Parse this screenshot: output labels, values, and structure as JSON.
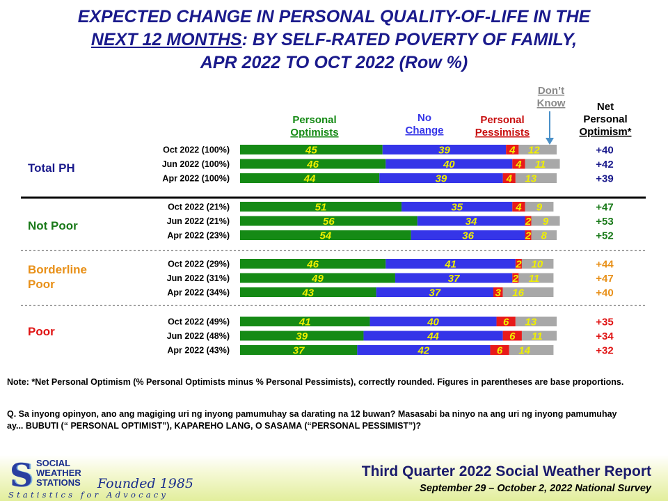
{
  "title": {
    "line1": "EXPECTED CHANGE IN PERSONAL QUALITY-OF-LIFE IN THE",
    "line2_underlined": "NEXT 12 MONTHS",
    "line2_rest": ": BY SELF-RATED POVERTY OF FAMILY,",
    "line3": "APR 2022 TO OCT 2022 (Row %)"
  },
  "chart_data": {
    "type": "bar",
    "stacked": true,
    "orientation": "horizontal",
    "legend": {
      "optimists": [
        "Personal",
        "Optimists"
      ],
      "no_change": [
        "No",
        "Change"
      ],
      "pessimists": [
        "Personal",
        "Pessimists"
      ],
      "dont_know": [
        "Don’t",
        "Know"
      ],
      "net": [
        "Net",
        "Personal",
        "Optimism*"
      ]
    },
    "colors": {
      "optimists": "#158a15",
      "no_change": "#3535e8",
      "pessimists": "#e81a1a",
      "dont_know": "#a8a8a8",
      "value_text": "#f0f000",
      "net_ph": "#1a1a8c",
      "net_not_poor": "#1a7a1a",
      "net_borderline": "#e89018",
      "net_poor": "#e01414"
    },
    "groups": [
      {
        "name": "Total PH",
        "color": "#1a1a8c",
        "rows": [
          {
            "label": "Oct 2022 (100%)",
            "optimists": 45,
            "no_change": 39,
            "pessimists": 4,
            "dont_know": 12,
            "net": "+40"
          },
          {
            "label": "Jun 2022 (100%)",
            "optimists": 46,
            "no_change": 40,
            "pessimists": 4,
            "dont_know": 11,
            "net": "+42"
          },
          {
            "label": "Apr 2022 (100%)",
            "optimists": 44,
            "no_change": 39,
            "pessimists": 4,
            "dont_know": 13,
            "net": "+39"
          }
        ]
      },
      {
        "name": "Not Poor",
        "color": "#1a7a1a",
        "rows": [
          {
            "label": "Oct 2022 (21%)",
            "optimists": 51,
            "no_change": 35,
            "pessimists": 4,
            "dont_know": 9,
            "net": "+47"
          },
          {
            "label": "Jun 2022 (21%)",
            "optimists": 56,
            "no_change": 34,
            "pessimists": 2,
            "dont_know": 9,
            "net": "+53"
          },
          {
            "label": "Apr 2022 (23%)",
            "optimists": 54,
            "no_change": 36,
            "pessimists": 2,
            "dont_know": 8,
            "net": "+52"
          }
        ]
      },
      {
        "name": "Borderline Poor",
        "color": "#e89018",
        "rows": [
          {
            "label": "Oct 2022 (29%)",
            "optimists": 46,
            "no_change": 41,
            "pessimists": 2,
            "dont_know": 10,
            "net": "+44"
          },
          {
            "label": "Jun 2022 (31%)",
            "optimists": 49,
            "no_change": 37,
            "pessimists": 2,
            "dont_know": 11,
            "net": "+47"
          },
          {
            "label": "Apr 2022 (34%)",
            "optimists": 43,
            "no_change": 37,
            "pessimists": 3,
            "dont_know": 16,
            "net": "+40"
          }
        ]
      },
      {
        "name": "Poor",
        "color": "#e01414",
        "rows": [
          {
            "label": "Oct 2022 (49%)",
            "optimists": 41,
            "no_change": 40,
            "pessimists": 6,
            "dont_know": 13,
            "net": "+35"
          },
          {
            "label": "Jun 2022 (48%)",
            "optimists": 39,
            "no_change": 44,
            "pessimists": 6,
            "dont_know": 11,
            "net": "+34"
          },
          {
            "label": "Apr 2022 (43%)",
            "optimists": 37,
            "no_change": 42,
            "pessimists": 6,
            "dont_know": 14,
            "net": "+32"
          }
        ]
      }
    ]
  },
  "notes": {
    "net_note": "Note: *Net Personal Optimism (% Personal Optimists minus % Personal Pessimists), correctly rounded. Figures in parentheses are base proportions.",
    "question": "Q. Sa inyong opinyon, ano ang magiging uri ng inyong pamumuhay sa darating na 12 buwan? Masasabi ba ninyo na ang uri ng inyong pamumuhay ay... BUBUTI (“ PERSONAL OPTIMIST”), KAPAREHO LANG, O SASAMA (“PERSONAL PESSIMIST”)?"
  },
  "footer": {
    "logo_lines": [
      "SOCIAL",
      "WEATHER",
      "STATIONS"
    ],
    "founded": "Founded 1985",
    "tagline": "Statistics for Advocacy",
    "report_title": "Third Quarter 2022 Social Weather Report",
    "report_subtitle": "September 29 – October 2, 2022 National Survey"
  }
}
